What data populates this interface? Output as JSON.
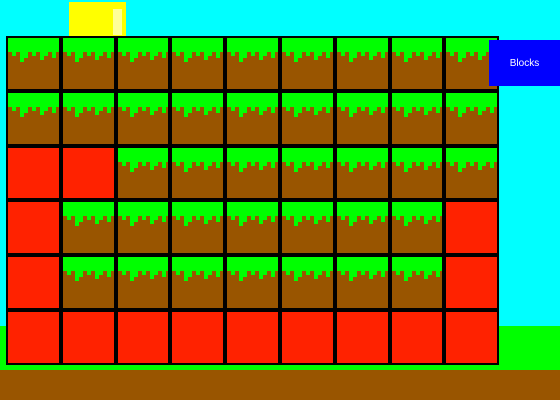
{
  "game": {
    "grid_rows": 6,
    "grid_cols": 9,
    "tiles": [
      [
        "grass",
        "grass",
        "grass",
        "grass",
        "grass",
        "grass",
        "grass",
        "grass",
        "grass"
      ],
      [
        "grass",
        "grass",
        "grass",
        "grass",
        "grass",
        "grass",
        "grass",
        "grass",
        "grass"
      ],
      [
        "empty",
        "empty",
        "grass",
        "grass",
        "grass",
        "grass",
        "grass",
        "grass",
        "grass"
      ],
      [
        "empty",
        "grass",
        "grass",
        "grass",
        "grass",
        "grass",
        "grass",
        "grass",
        "empty"
      ],
      [
        "empty",
        "grass",
        "grass",
        "grass",
        "grass",
        "grass",
        "grass",
        "grass",
        "empty"
      ],
      [
        "empty",
        "empty",
        "empty",
        "empty",
        "empty",
        "empty",
        "empty",
        "empty",
        "empty"
      ]
    ]
  },
  "hud": {
    "blocks_button_label": "Blocks"
  },
  "colors": {
    "sky": "#00ffff",
    "sun": "#ffff00",
    "grass": "#00ff00",
    "dirt": "#995500",
    "empty_tile": "#ff2200",
    "button": "#0000ff"
  }
}
